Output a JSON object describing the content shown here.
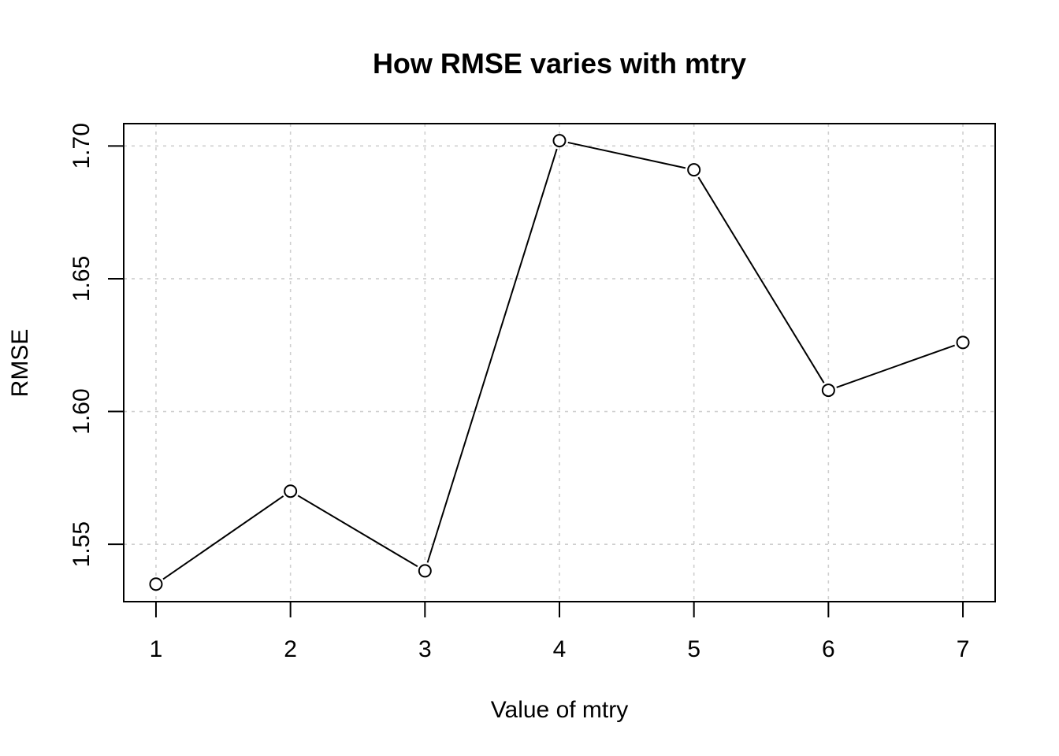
{
  "chart_data": {
    "type": "line",
    "title": "How RMSE varies with mtry",
    "xlabel": "Value of mtry",
    "ylabel": "RMSE",
    "x": [
      1,
      2,
      3,
      4,
      5,
      6,
      7
    ],
    "series": [
      {
        "values": [
          1.535,
          1.57,
          1.54,
          1.702,
          1.691,
          1.608,
          1.626
        ]
      }
    ],
    "xticks": [
      "1",
      "2",
      "3",
      "4",
      "5",
      "6",
      "7"
    ],
    "yticks": [
      "1.55",
      "1.60",
      "1.65",
      "1.70"
    ],
    "xlim": [
      0.76,
      7.24
    ],
    "ylim": [
      1.5284,
      1.7084
    ],
    "grid": true,
    "markers": "open-circle",
    "legend": "none"
  }
}
